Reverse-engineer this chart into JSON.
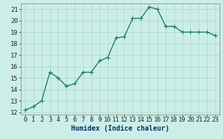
{
  "x": [
    0,
    1,
    2,
    3,
    4,
    5,
    6,
    7,
    8,
    9,
    10,
    11,
    12,
    13,
    14,
    15,
    16,
    17,
    18,
    19,
    20,
    21,
    22,
    23
  ],
  "y": [
    12.2,
    12.5,
    13.0,
    15.5,
    15.0,
    14.3,
    14.5,
    15.5,
    15.5,
    16.5,
    16.8,
    18.5,
    18.6,
    20.2,
    20.2,
    21.2,
    21.0,
    19.5,
    19.5,
    19.0,
    19.0,
    19.0,
    19.0,
    18.7
  ],
  "line_color": "#1a7a6a",
  "marker_color": "#1a7a6a",
  "bg_color": "#cceee8",
  "grid_color": "#aad4cc",
  "xlabel": "Humidex (Indice chaleur)",
  "ylim": [
    11.8,
    21.5
  ],
  "xlim": [
    -0.5,
    23.5
  ],
  "yticks": [
    12,
    13,
    14,
    15,
    16,
    17,
    18,
    19,
    20,
    21
  ],
  "xticks": [
    0,
    1,
    2,
    3,
    4,
    5,
    6,
    7,
    8,
    9,
    10,
    11,
    12,
    13,
    14,
    15,
    16,
    17,
    18,
    19,
    20,
    21,
    22,
    23
  ],
  "xlabel_fontsize": 7,
  "tick_fontsize": 6.5,
  "line_width": 1.0,
  "marker_size": 2.5
}
